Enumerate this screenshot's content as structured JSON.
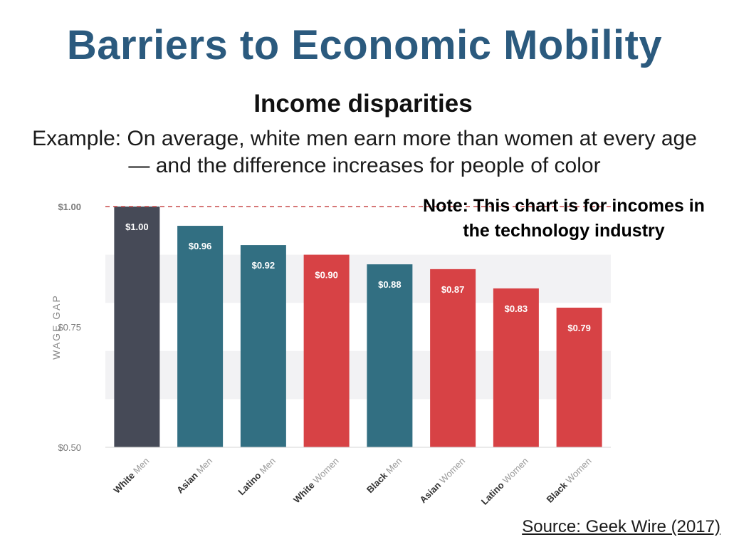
{
  "slide": {
    "title": "Barriers to Economic Mobility",
    "subtitle": "Income disparities",
    "description": "Example: On average, white men earn more than women at every age — and the difference increases for people of color",
    "note": "Note: This chart is for incomes in the technology industry",
    "source": "Source: Geek Wire (2017)"
  },
  "chart_data": {
    "type": "bar",
    "ylabel": "WAGE GAP",
    "xlabel": "",
    "ylim": [
      0.5,
      1.0
    ],
    "yticks": [
      {
        "value": 0.5,
        "label": "$0.50"
      },
      {
        "value": 0.75,
        "label": "$0.75"
      },
      {
        "value": 1.0,
        "label": "$1.00"
      }
    ],
    "reference_line": {
      "value": 1.0,
      "style": "dashed"
    },
    "categories": [
      {
        "bold": "White",
        "rest": "Men"
      },
      {
        "bold": "Asian",
        "rest": "Men"
      },
      {
        "bold": "Latino",
        "rest": "Men"
      },
      {
        "bold": "White",
        "rest": "Women"
      },
      {
        "bold": "Black",
        "rest": "Men"
      },
      {
        "bold": "Asian",
        "rest": "Women"
      },
      {
        "bold": "Latino",
        "rest": "Women"
      },
      {
        "bold": "Black",
        "rest": "Women"
      }
    ],
    "values": [
      1.0,
      0.96,
      0.92,
      0.9,
      0.88,
      0.87,
      0.83,
      0.79
    ],
    "labels": [
      "$1.00",
      "$0.96",
      "$0.92",
      "$0.90",
      "$0.88",
      "$0.87",
      "$0.83",
      "$0.79"
    ],
    "colors": [
      "#464a57",
      "#326f82",
      "#326f82",
      "#d74245",
      "#326f82",
      "#d74245",
      "#d74245",
      "#d74245"
    ],
    "reference_color": "#c94a4a",
    "band_color": "#f2f2f4"
  }
}
